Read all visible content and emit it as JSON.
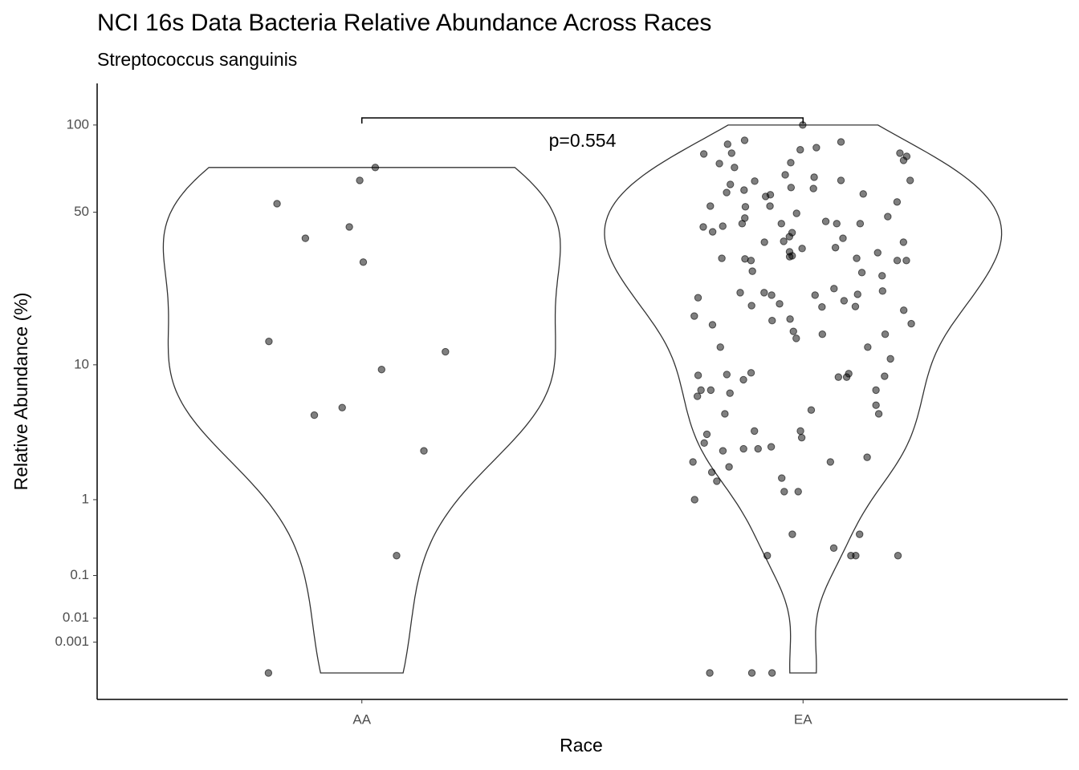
{
  "chart_data": {
    "type": "violin",
    "title": "NCI 16s Data Bacteria Relative Abundance Across Races",
    "subtitle": "Streptococcus sanguinis",
    "x_label": "Race",
    "y_label": "Relative Abundance (%)",
    "categories": [
      "AA",
      "EA"
    ],
    "values": [
      [
        65.3,
        72.4,
        53.8,
        39.6,
        43.9,
        31.6,
        13.4,
        11.8,
        9.4,
        5.5,
        4.9,
        2.7,
        0.21,
        0
      ],
      [
        100,
        89.3,
        88.2,
        86.7,
        84.5,
        83.1,
        81,
        80.5,
        81,
        79,
        74.7,
        75.2,
        76.6,
        72.4,
        68.3,
        67,
        65.3,
        64.9,
        63.2,
        65.3,
        61.6,
        60.3,
        61.1,
        57.2,
        59.1,
        58.4,
        58.0,
        52.7,
        52.7,
        54.6,
        52.4,
        48.1,
        49.5,
        47.5,
        46.1,
        45.2,
        45.2,
        45.2,
        44.2,
        45.2,
        41.7,
        42.0,
        43.9,
        38.5,
        39.6,
        36.3,
        38.2,
        38.2,
        40.2,
        36.0,
        34.9,
        34.6,
        33.6,
        33.3,
        32.1,
        32.6,
        32.8,
        32.8,
        28.9,
        28.5,
        27.6,
        32.1,
        32.1,
        23.6,
        22.8,
        24.2,
        22.6,
        22.0,
        23.2,
        22.6,
        23.2,
        20.6,
        21.3,
        20.0,
        20.2,
        19.2,
        18.0,
        17.1,
        19.9,
        17.4,
        16.3,
        16.5,
        15.1,
        14.6,
        14.6,
        13.9,
        12.5,
        12.5,
        10.8,
        9.0,
        8.7,
        8.8,
        8.9,
        8.5,
        8.5,
        8.6,
        8.2,
        7.1,
        6.8,
        7.1,
        7.1,
        6.5,
        5.3,
        5.7,
        5.0,
        5.0,
        3.4,
        3.1,
        3.8,
        3.8,
        3.6,
        2.9,
        2.8,
        2.8,
        2.4,
        2.7,
        2.0,
        2.2,
        2.2,
        1.8,
        1.6,
        1.5,
        1.2,
        1.2,
        1.0,
        0.41,
        0.41,
        0.21,
        0.21,
        0.21,
        0.21,
        0.27,
        0,
        0,
        0
      ]
    ],
    "yscale": "fourth_root",
    "ylim": [
      0,
      134
    ],
    "yticks": [
      0.001,
      0.01,
      0.1,
      1,
      10,
      50,
      100
    ],
    "point_color": "#000000",
    "violin_color": "#333333",
    "annotation": "p=0.554"
  }
}
